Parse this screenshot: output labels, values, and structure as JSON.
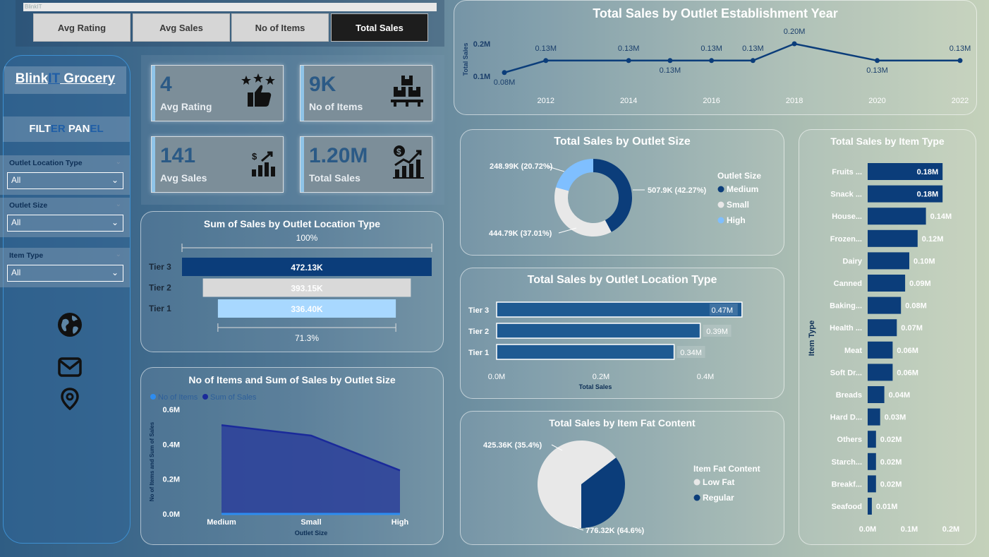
{
  "nav": {
    "strip_text": "BlinkIT",
    "buttons": [
      "Avg Rating",
      "Avg Sales",
      "No of Items",
      "Total Sales"
    ],
    "active": "Total Sales"
  },
  "brand": {
    "part1": "Blink",
    "part2": "IT",
    "part3": " Grocery"
  },
  "filter_panel": {
    "title_a": "FILT",
    "title_b": "ER",
    "title_c": " PAN",
    "title_d": "EL",
    "filters": [
      {
        "label": "Outlet Location Type",
        "value": "All"
      },
      {
        "label": "Outlet Size",
        "value": "All"
      },
      {
        "label": "Item Type",
        "value": "All"
      }
    ]
  },
  "kpis": [
    {
      "value": "4",
      "label": "Avg Rating",
      "icon": "rating-thumbs-icon"
    },
    {
      "value": "9K",
      "label": "No of Items",
      "icon": "boxes-icon"
    },
    {
      "value": "141",
      "label": "Avg Sales",
      "icon": "sales-growth-icon"
    },
    {
      "value": "1.20M",
      "label": "Total Sales",
      "icon": "dollar-chart-icon"
    }
  ],
  "colors": {
    "dark_blue": "#0b3d7a",
    "mid_blue": "#1e5a92",
    "light_blue": "#a8d8ff",
    "light_gray": "#d9d9d9",
    "navy": "#1a2a9a"
  },
  "chart_data": [
    {
      "id": "year",
      "type": "line",
      "title": "Total Sales by Outlet Establishment Year",
      "ylabel": "Total Sales",
      "yticks": [
        "0.2M",
        "0.1M"
      ],
      "x": [
        2011,
        2012,
        2014,
        2015,
        2016,
        2017,
        2018,
        2020,
        2022
      ],
      "values": [
        0.08,
        0.13,
        0.13,
        0.13,
        0.13,
        0.13,
        0.2,
        0.13,
        0.13
      ],
      "labels": [
        "0.08M",
        "0.13M",
        "0.13M",
        "0.13M",
        "0.13M",
        "0.13M",
        "0.20M",
        "0.13M",
        "0.13M"
      ],
      "xticks": [
        "2012",
        "2014",
        "2016",
        "2018",
        "2020",
        "2022"
      ]
    },
    {
      "id": "funnel",
      "type": "bar",
      "title": "Sum of Sales by Outlet Location Type",
      "categories": [
        "Tier 3",
        "Tier 2",
        "Tier 1"
      ],
      "values": [
        472.13,
        393.15,
        336.4
      ],
      "labels": [
        "472.13K",
        "393.15K",
        "336.40K"
      ],
      "top_pct": "100%",
      "bottom_pct": "71.3%"
    },
    {
      "id": "area",
      "type": "area",
      "title": "No of Items and Sum of Sales by Outlet Size",
      "legend": [
        "No of Items",
        "Sum of Sales"
      ],
      "categories": [
        "Medium",
        "Small",
        "High"
      ],
      "series": [
        {
          "name": "Sum of Sales",
          "values": [
            0.51,
            0.45,
            0.25
          ]
        },
        {
          "name": "No of Items",
          "values": [
            0.003,
            0.003,
            0.003
          ]
        }
      ],
      "yticks": [
        "0.6M",
        "0.4M",
        "0.2M",
        "0.0M"
      ],
      "ylim": [
        0,
        0.6
      ],
      "xlabel": "Outlet Size",
      "ylabel": "No of Items and Sum of Sales"
    },
    {
      "id": "size",
      "type": "pie",
      "title": "Total Sales by Outlet Size",
      "legend_title": "Outlet Size",
      "categories": [
        "Medium",
        "Small",
        "High"
      ],
      "values": [
        42.27,
        37.01,
        20.72
      ],
      "labels": [
        "507.9K (42.27%)",
        "444.79K (37.01%)",
        "248.99K (20.72%)"
      ]
    },
    {
      "id": "loc",
      "type": "bar",
      "title": "Total Sales by Outlet Location Type",
      "categories": [
        "Tier 3",
        "Tier 2",
        "Tier 1"
      ],
      "values": [
        0.47,
        0.39,
        0.34
      ],
      "labels": [
        "0.47M",
        "0.39M",
        "0.34M"
      ],
      "xticks": [
        "0.0M",
        "0.2M",
        "0.4M"
      ],
      "xlim": [
        0,
        0.5
      ],
      "xlabel": "Total Sales"
    },
    {
      "id": "fat",
      "type": "pie",
      "title": "Total Sales by Item Fat Content",
      "legend_title": "Item Fat Content",
      "categories": [
        "Low Fat",
        "Regular"
      ],
      "values": [
        64.6,
        35.4
      ],
      "labels": [
        "776.32K (64.6%)",
        "425.36K (35.4%)"
      ]
    },
    {
      "id": "item",
      "type": "bar",
      "title": "Total Sales by Item Type",
      "ylabel": "Item Type",
      "categories": [
        "Fruits ...",
        "Snack ...",
        "House...",
        "Frozen...",
        "Dairy",
        "Canned",
        "Baking...",
        "Health ...",
        "Meat",
        "Soft Dr...",
        "Breads",
        "Hard D...",
        "Others",
        "Starch...",
        "Breakf...",
        "Seafood"
      ],
      "values": [
        0.18,
        0.18,
        0.14,
        0.12,
        0.1,
        0.09,
        0.08,
        0.07,
        0.06,
        0.06,
        0.04,
        0.03,
        0.02,
        0.02,
        0.02,
        0.01
      ],
      "labels": [
        "0.18M",
        "0.18M",
        "0.14M",
        "0.12M",
        "0.10M",
        "0.09M",
        "0.08M",
        "0.07M",
        "0.06M",
        "0.06M",
        "0.04M",
        "0.03M",
        "0.02M",
        "0.02M",
        "0.02M",
        "0.01M"
      ],
      "xticks": [
        "0.0M",
        "0.1M",
        "0.2M"
      ],
      "xlim": [
        0,
        0.2
      ]
    }
  ]
}
